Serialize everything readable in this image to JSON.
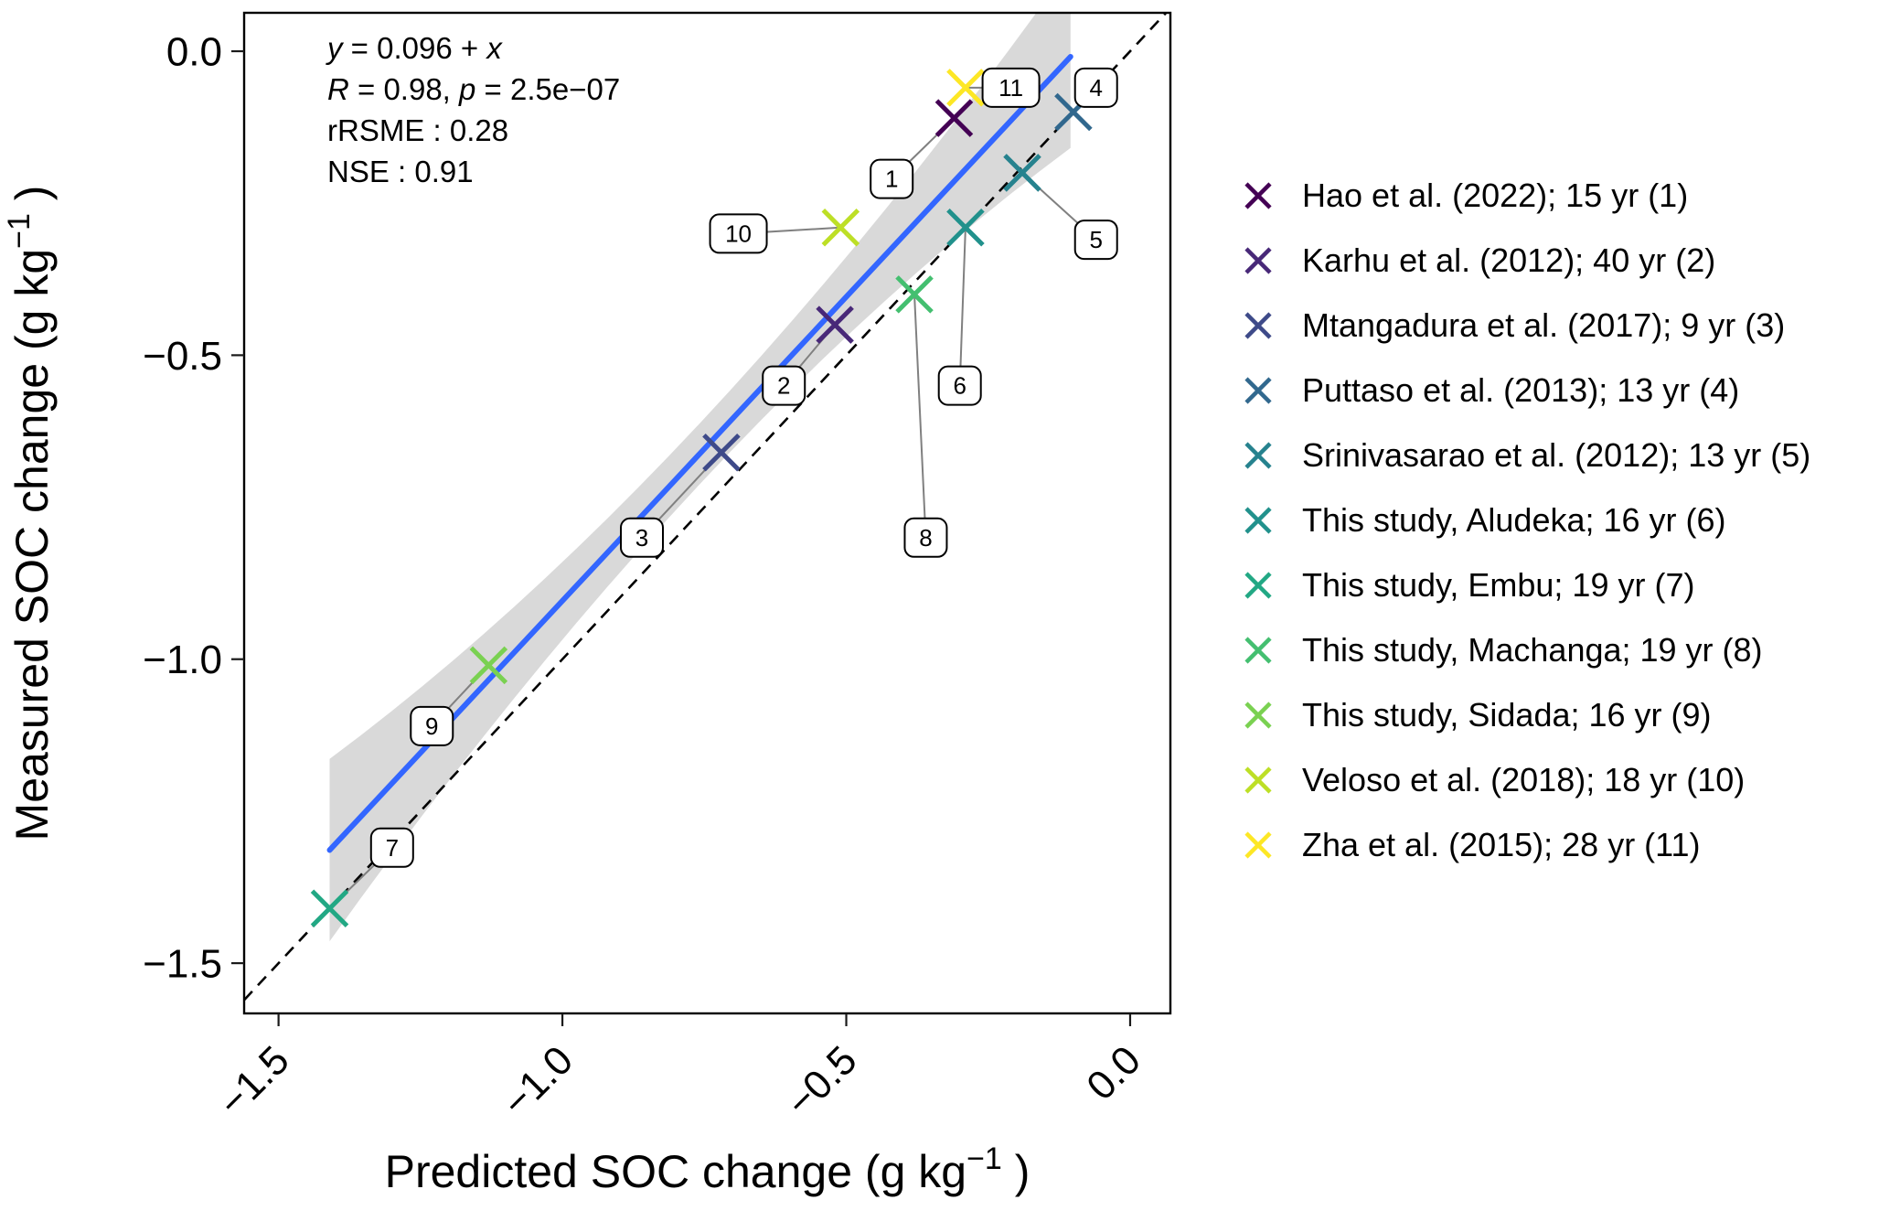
{
  "chart_data": {
    "type": "scatter",
    "title": "",
    "xlabel": {
      "base": "Predicted SOC change (g kg",
      "sup": "−1",
      "close": " )"
    },
    "ylabel": {
      "base": "Measured SOC change (g kg",
      "sup": "−1",
      "close": " )"
    },
    "xlim": [
      -1.5606,
      0.0709
    ],
    "ylim": [
      -1.5826,
      0.0632
    ],
    "xticks": {
      "values": [
        -1.5,
        -1.0,
        -0.5,
        0.0
      ],
      "labels": [
        "−1.5",
        "−1.0",
        "−0.5",
        "0.0"
      ]
    },
    "yticks": {
      "values": [
        0.0,
        -0.5,
        -1.0,
        -1.5
      ],
      "labels": [
        "0.0",
        "−0.5",
        "−1.0",
        "−1.5"
      ]
    },
    "grid": false,
    "legend_position": "right",
    "identity_line": {
      "equation": "y = x",
      "style": "dashed",
      "color": "#000000"
    },
    "regression_line": {
      "intercept": 0.096,
      "slope": 1.0,
      "x_start": -1.41,
      "x_end": -0.105,
      "color": "#3366FF"
    },
    "confidence_band": {
      "color": "#d9d9d9",
      "half_width_min": 0.05,
      "half_width_max": 0.15
    },
    "annotation": {
      "eq_y": "y",
      "eq_mid": " = 0.096 + ",
      "eq_x": "x",
      "r_var": "R",
      "r_mid": " = 0.98, ",
      "p_var": "p",
      "p_val": " = 2.5e−07",
      "rrsme": "rRSME : 0.28",
      "nse": "NSE : 0.91"
    },
    "points": [
      {
        "n": 1,
        "study": "Hao et al. (2022); 15 yr (1)",
        "x": -0.31,
        "y": -0.11,
        "color": "#440154",
        "lx": -0.42,
        "ly": -0.21
      },
      {
        "n": 2,
        "study": "Karhu et al. (2012); 40 yr (2)",
        "x": -0.52,
        "y": -0.45,
        "color": "#482878",
        "lx": -0.61,
        "ly": -0.55
      },
      {
        "n": 3,
        "study": "Mtangadura et al. (2017); 9 yr (3)",
        "x": -0.72,
        "y": -0.66,
        "color": "#3e4a89",
        "lx": -0.86,
        "ly": -0.8
      },
      {
        "n": 4,
        "study": "Puttaso et al. (2013); 13 yr (4)",
        "x": -0.1,
        "y": -0.1,
        "color": "#31688e",
        "lx": -0.06,
        "ly": -0.06
      },
      {
        "n": 5,
        "study": "Srinivasarao et al. (2012); 13 yr (5)",
        "x": -0.19,
        "y": -0.2,
        "color": "#26828e",
        "lx": -0.06,
        "ly": -0.31
      },
      {
        "n": 6,
        "study": "This study, Aludeka; 16 yr (6)",
        "x": -0.29,
        "y": -0.29,
        "color": "#21918c",
        "lx": -0.3,
        "ly": -0.55
      },
      {
        "n": 7,
        "study": "This study, Embu; 19 yr (7)",
        "x": -1.41,
        "y": -1.41,
        "color": "#22a884",
        "lx": -1.3,
        "ly": -1.31
      },
      {
        "n": 8,
        "study": "This study, Machanga; 19 yr (8)",
        "x": -0.38,
        "y": -0.4,
        "color": "#44bf70",
        "lx": -0.36,
        "ly": -0.8
      },
      {
        "n": 9,
        "study": "This study, Sidada; 16 yr (9)",
        "x": -1.13,
        "y": -1.01,
        "color": "#7ad151",
        "lx": -1.23,
        "ly": -1.11
      },
      {
        "n": 10,
        "study": "Veloso et al. (2018); 18 yr (10)",
        "x": -0.51,
        "y": -0.29,
        "color": "#bddf26",
        "lx": -0.69,
        "ly": -0.3
      },
      {
        "n": 11,
        "study": "Zha et al. (2015); 28 yr (11)",
        "x": -0.29,
        "y": -0.06,
        "color": "#fde725",
        "lx": -0.21,
        "ly": -0.06
      }
    ]
  }
}
